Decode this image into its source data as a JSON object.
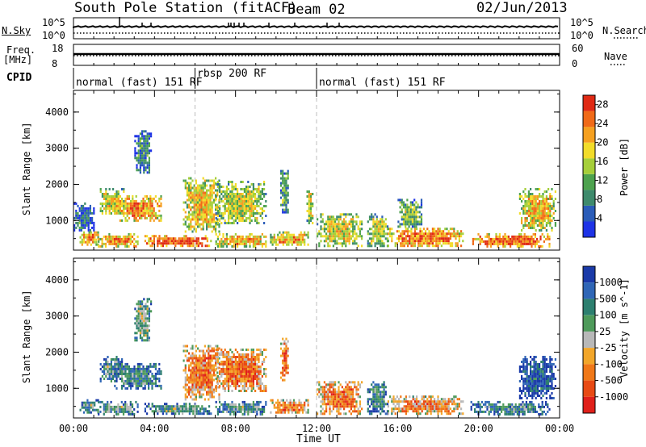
{
  "header": {
    "station": "South Pole Station (fitACF)",
    "beam": "Beam 02",
    "date": "02/Jun/2013"
  },
  "top_panels": {
    "nsky_label": "N.Sky",
    "nsky_ticks": [
      "10^5",
      "10^0"
    ],
    "nsearch_label": "N.Search",
    "nsearch_ticks": [
      "10^5",
      "10^0"
    ],
    "freq_label": "Freq.",
    "freq_unit": "[MHz]",
    "freq_ticks": [
      "18",
      "8"
    ],
    "nave_label": "Nave",
    "nave_ticks": [
      "60",
      "0"
    ],
    "cpid_label": "CPID",
    "cpid_segments": [
      {
        "label": "normal (fast) 151 RF",
        "start_hour": 0,
        "end_hour": 6
      },
      {
        "label": "rbsp 200 RF",
        "start_hour": 6,
        "end_hour": 12
      },
      {
        "label": "normal (fast) 151 RF",
        "start_hour": 12,
        "end_hour": 24
      }
    ]
  },
  "chart_data": [
    {
      "type": "heatmap",
      "name": "power",
      "ylabel": "Slant Range [km]",
      "xlabel": "Time UT",
      "x_ticks": [
        "00:00",
        "04:00",
        "08:00",
        "12:00",
        "16:00",
        "20:00",
        "00:00"
      ],
      "xlim_hours": [
        0,
        24
      ],
      "y_ticks": [
        1000,
        2000,
        3000,
        4000
      ],
      "ylim": [
        180,
        4600
      ],
      "colorbar": {
        "label": "Power [dB]",
        "ticks": [
          4,
          8,
          12,
          16,
          20,
          24,
          28
        ],
        "range": [
          0,
          30
        ],
        "colors": [
          "#1e33e6",
          "#2a5cb8",
          "#3e8a6c",
          "#4da24e",
          "#a6cf3a",
          "#f2dc2a",
          "#f5a020",
          "#f06a18",
          "#e02a14"
        ]
      },
      "blobs": [
        {
          "t0": 0.3,
          "t1": 1.2,
          "r0": 350,
          "r1": 700,
          "level": 0.75
        },
        {
          "t0": 0.0,
          "t1": 1.0,
          "r0": 750,
          "r1": 1500,
          "level": 0.25
        },
        {
          "t0": 1.3,
          "t1": 2.5,
          "r0": 1200,
          "r1": 1900,
          "level": 0.6
        },
        {
          "t0": 2.0,
          "t1": 4.3,
          "r0": 1000,
          "r1": 1700,
          "level": 0.75
        },
        {
          "t0": 3.0,
          "t1": 3.8,
          "r0": 2300,
          "r1": 3500,
          "level": 0.3
        },
        {
          "t0": 1.2,
          "t1": 3.2,
          "r0": 300,
          "r1": 650,
          "level": 0.75
        },
        {
          "t0": 3.5,
          "t1": 6.8,
          "r0": 300,
          "r1": 600,
          "level": 0.9
        },
        {
          "t0": 5.4,
          "t1": 7.2,
          "r0": 700,
          "r1": 2200,
          "level": 0.65
        },
        {
          "t0": 7.0,
          "t1": 9.5,
          "r0": 900,
          "r1": 2100,
          "level": 0.55
        },
        {
          "t0": 7.0,
          "t1": 9.5,
          "r0": 300,
          "r1": 650,
          "level": 0.7
        },
        {
          "t0": 9.7,
          "t1": 11.6,
          "r0": 300,
          "r1": 700,
          "level": 0.7
        },
        {
          "t0": 10.2,
          "t1": 10.6,
          "r0": 1200,
          "r1": 2400,
          "level": 0.4
        },
        {
          "t0": 11.5,
          "t1": 11.8,
          "r0": 900,
          "r1": 1900,
          "level": 0.6
        },
        {
          "t0": 12.0,
          "t1": 14.2,
          "r0": 300,
          "r1": 1200,
          "level": 0.6
        },
        {
          "t0": 14.5,
          "t1": 15.5,
          "r0": 300,
          "r1": 1200,
          "level": 0.55
        },
        {
          "t0": 15.5,
          "t1": 19.2,
          "r0": 300,
          "r1": 800,
          "level": 0.8
        },
        {
          "t0": 16.0,
          "t1": 17.2,
          "r0": 800,
          "r1": 1600,
          "level": 0.45
        },
        {
          "t0": 19.6,
          "t1": 23.5,
          "r0": 300,
          "r1": 650,
          "level": 0.85
        },
        {
          "t0": 22.0,
          "t1": 23.8,
          "r0": 700,
          "r1": 1900,
          "level": 0.65
        }
      ]
    },
    {
      "type": "heatmap",
      "name": "velocity",
      "ylabel": "Slant Range [km]",
      "xlabel": "Time UT",
      "x_ticks": [
        "00:00",
        "04:00",
        "08:00",
        "12:00",
        "16:00",
        "20:00",
        "00:00"
      ],
      "xlim_hours": [
        0,
        24
      ],
      "y_ticks": [
        1000,
        2000,
        3000,
        4000
      ],
      "ylim": [
        180,
        4600
      ],
      "colorbar": {
        "label": "Velocity [m s^-1]",
        "ticks": [
          1000,
          500,
          100,
          25,
          -25,
          -100,
          -500,
          -1000
        ],
        "colors": [
          "#1a3aa8",
          "#2f66b6",
          "#2d7f6f",
          "#4e9a5a",
          "#b8b8b8",
          "#f2a62a",
          "#f07818",
          "#e84a14",
          "#e0201a"
        ]
      },
      "blobs": [
        {
          "t0": 0.3,
          "t1": 1.2,
          "r0": 350,
          "r1": 700,
          "level": 0.35
        },
        {
          "t0": 1.3,
          "t1": 2.5,
          "r0": 1200,
          "r1": 1900,
          "level": 0.35
        },
        {
          "t0": 2.0,
          "t1": 4.3,
          "r0": 1000,
          "r1": 1700,
          "level": 0.3
        },
        {
          "t0": 3.0,
          "t1": 3.8,
          "r0": 2300,
          "r1": 3500,
          "level": 0.45
        },
        {
          "t0": 1.2,
          "t1": 3.2,
          "r0": 300,
          "r1": 650,
          "level": 0.35
        },
        {
          "t0": 3.5,
          "t1": 6.8,
          "r0": 300,
          "r1": 600,
          "level": 0.35
        },
        {
          "t0": 5.4,
          "t1": 7.2,
          "r0": 700,
          "r1": 2200,
          "level": 0.75
        },
        {
          "t0": 7.0,
          "t1": 9.5,
          "r0": 900,
          "r1": 2100,
          "level": 0.75
        },
        {
          "t0": 7.0,
          "t1": 9.5,
          "r0": 300,
          "r1": 650,
          "level": 0.35
        },
        {
          "t0": 9.7,
          "t1": 11.6,
          "r0": 300,
          "r1": 700,
          "level": 0.7
        },
        {
          "t0": 10.2,
          "t1": 10.6,
          "r0": 1200,
          "r1": 2400,
          "level": 0.8
        },
        {
          "t0": 12.0,
          "t1": 14.2,
          "r0": 300,
          "r1": 1200,
          "level": 0.75
        },
        {
          "t0": 14.5,
          "t1": 15.5,
          "r0": 300,
          "r1": 1200,
          "level": 0.3
        },
        {
          "t0": 15.5,
          "t1": 19.2,
          "r0": 300,
          "r1": 800,
          "level": 0.7
        },
        {
          "t0": 19.6,
          "t1": 23.5,
          "r0": 300,
          "r1": 650,
          "level": 0.3
        },
        {
          "t0": 22.0,
          "t1": 23.8,
          "r0": 700,
          "r1": 1900,
          "level": 0.15
        }
      ]
    }
  ]
}
